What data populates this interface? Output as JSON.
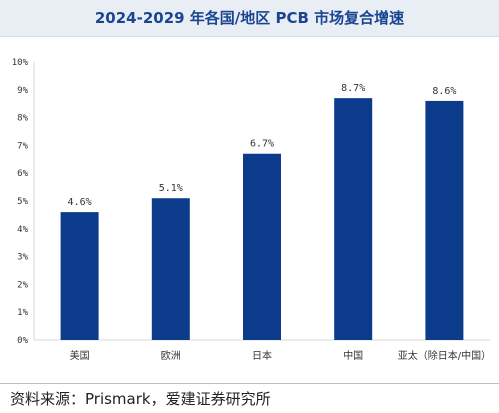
{
  "title": "2024-2029 年各国/地区 PCB 市场复合增速",
  "source": "资料来源：Prismark，爱建证券研究所",
  "colors": {
    "bar": "#0d3b8c",
    "title": "#1a4592",
    "title_band": "#e9eef5"
  },
  "chart_data": {
    "type": "bar",
    "title": "2024-2029 年各国/地区 PCB 市场复合增速",
    "xlabel": "",
    "ylabel": "",
    "categories": [
      "美国",
      "欧洲",
      "日本",
      "中国",
      "亚太（除日本/中国）"
    ],
    "values": [
      4.6,
      5.1,
      6.7,
      8.7,
      8.6
    ],
    "data_labels": [
      "4.6%",
      "5.1%",
      "6.7%",
      "8.7%",
      "8.6%"
    ],
    "ylim": [
      0,
      10
    ],
    "yticks": [
      "0%",
      "1%",
      "2%",
      "3%",
      "4%",
      "5%",
      "6%",
      "7%",
      "8%",
      "9%",
      "10%"
    ],
    "grid": false,
    "legend": "none"
  }
}
